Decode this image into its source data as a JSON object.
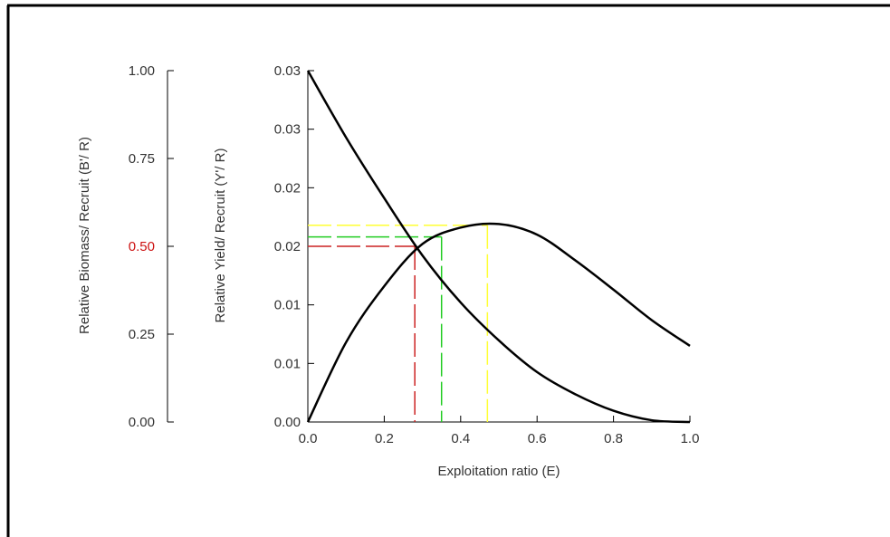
{
  "chart_data": {
    "type": "line",
    "title": "",
    "xlabel": "Exploitation ratio (E)",
    "x_ticks": [
      "0.0",
      "0.2",
      "0.4",
      "0.6",
      "0.8",
      "1.0"
    ],
    "xlim": [
      0,
      1
    ],
    "left_axis": {
      "label": "Relative Biomass/ Recruit (B'/ R)",
      "tick_labels": [
        "0.00",
        "0.25",
        "0.50",
        "0.75",
        "1.00"
      ],
      "highlight_tick": "0.50",
      "highlight_color": "#cc1111",
      "lim": [
        0,
        1
      ]
    },
    "right_axis": {
      "label": "Relative Yield/ Recruit (Y'/ R)",
      "tick_labels": [
        "0.00",
        "0.01",
        "0.01",
        "0.02",
        "0.02",
        "0.03",
        "0.03"
      ],
      "lim": [
        0,
        0.03
      ]
    },
    "series": [
      {
        "axis": "left",
        "x": [
          0,
          0.1,
          0.2,
          0.3,
          0.4,
          0.5,
          0.6,
          0.7,
          0.8,
          0.9,
          1.0
        ],
        "y": [
          1.0,
          0.81,
          0.637,
          0.474,
          0.34,
          0.232,
          0.142,
          0.079,
          0.032,
          0.005,
          0.0
        ]
      },
      {
        "axis": "right",
        "x": [
          0,
          0.1,
          0.2,
          0.3,
          0.4,
          0.5,
          0.6,
          0.7,
          0.8,
          0.9,
          1.0
        ],
        "y": [
          0.0,
          0.0068,
          0.0116,
          0.0152,
          0.0166,
          0.0169,
          0.016,
          0.0138,
          0.0113,
          0.0087,
          0.0065
        ]
      }
    ],
    "reference_lines": [
      {
        "color": "#cc2222",
        "x": 0.28,
        "left_y": 0.5
      },
      {
        "color": "#22cc22",
        "x": 0.35,
        "right_y": 0.0158
      },
      {
        "color": "#ffff33",
        "x": 0.47,
        "right_y": 0.0168
      }
    ],
    "grid": false
  }
}
